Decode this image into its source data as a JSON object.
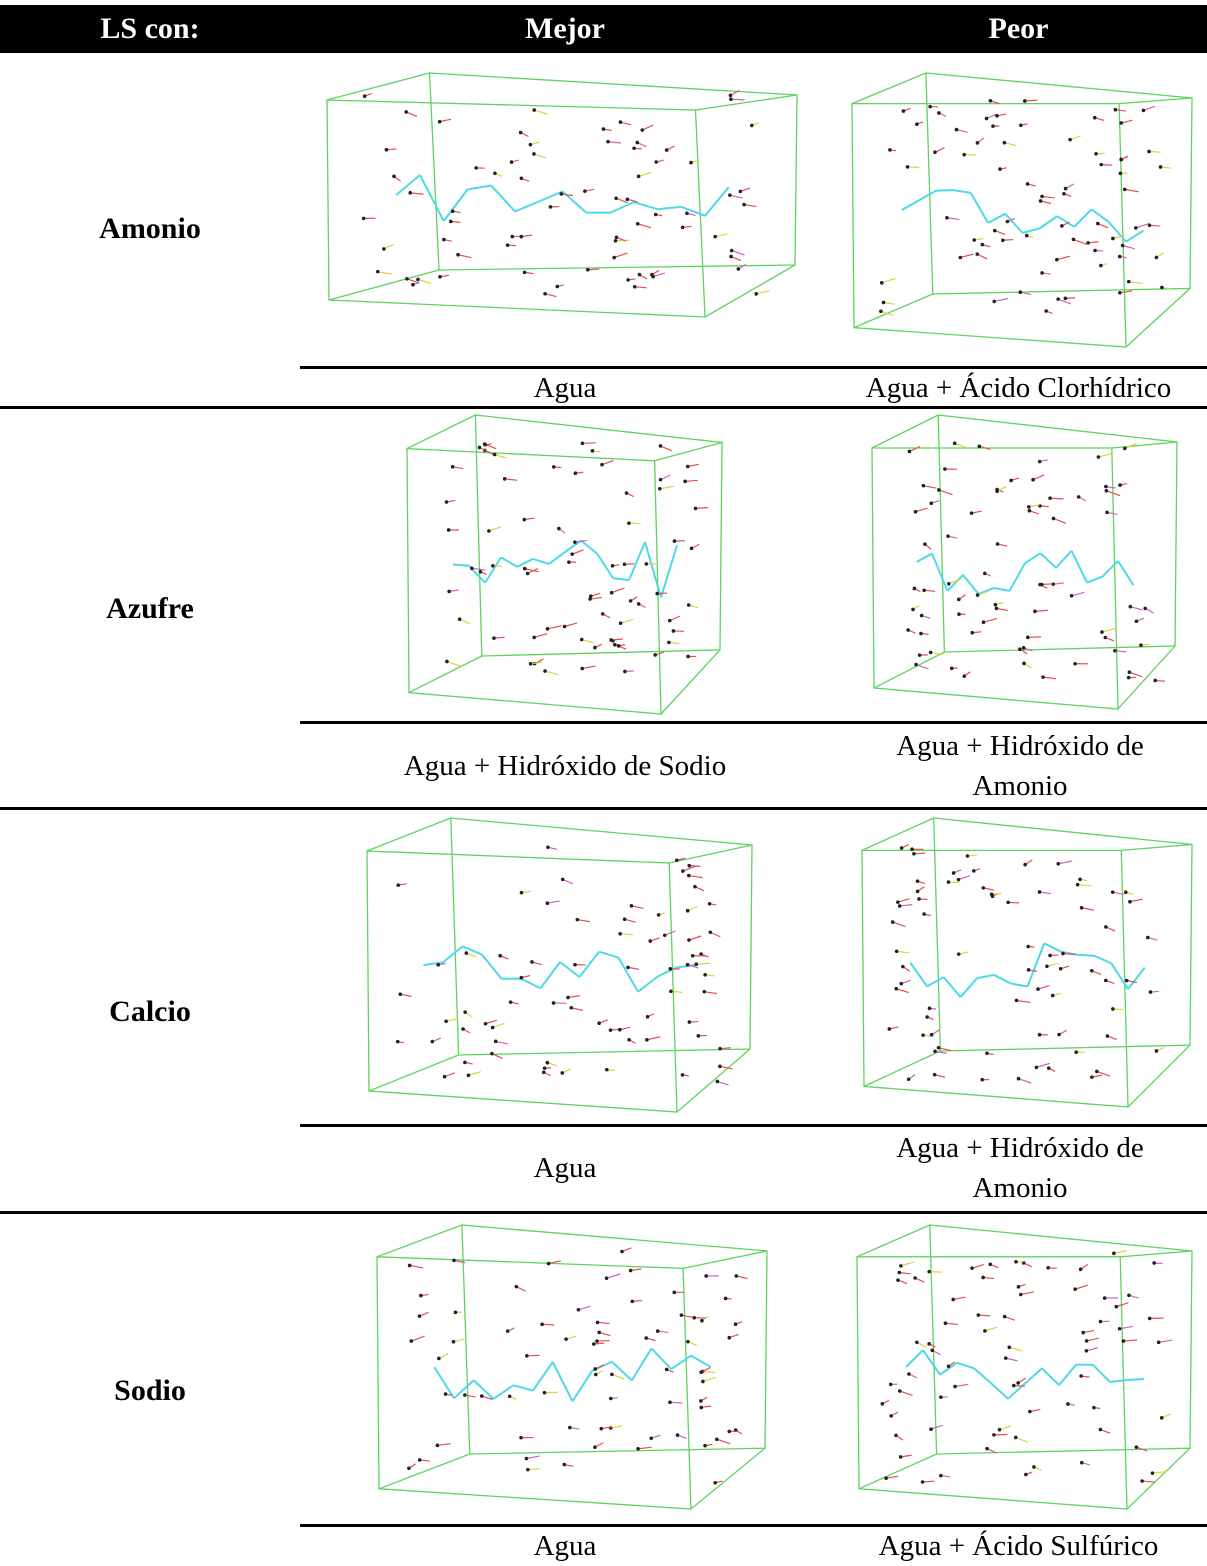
{
  "header": {
    "cells": [
      "LS con:",
      "Mejor",
      "Peor"
    ]
  },
  "rows": [
    {
      "label": "Amonio",
      "best": "Agua",
      "worst": "Agua + Ácido Clorhídrico"
    },
    {
      "label": "Azufre",
      "best": "Agua + Hidróxido de Sodio",
      "worst": "Agua + Hidróxido de Amonio"
    },
    {
      "label": "Calcio",
      "best": "Agua",
      "worst": "Agua + Hidróxido de Amonio"
    },
    {
      "label": "Sodio",
      "best": "Agua",
      "worst": "Agua + Ácido Sulfúrico"
    }
  ]
}
